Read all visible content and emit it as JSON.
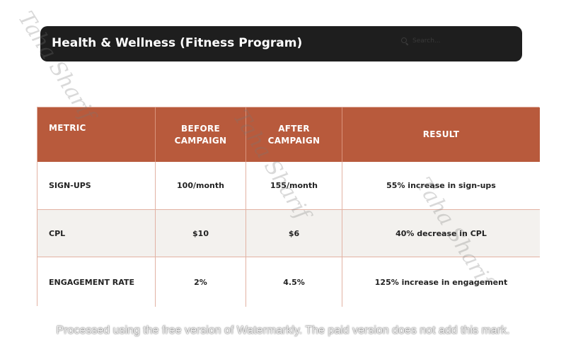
{
  "header": {
    "title": "Health & Wellness (Fitness Program)",
    "search_placeholder": "Search..."
  },
  "table": {
    "columns": [
      "METRIC",
      "BEFORE CAMPAIGN",
      "AFTER CAMPAIGN",
      "RESULT"
    ],
    "rows": [
      {
        "metric": "SIGN-UPS",
        "before": "100/month",
        "after": "155/month",
        "result": "55% increase in sign-ups"
      },
      {
        "metric": "CPL",
        "before": "$10",
        "after": "$6",
        "result": "40% decrease in CPL"
      },
      {
        "metric": "ENGAGEMENT RATE",
        "before": "2%",
        "after": "4.5%",
        "result": "125% increase in engagement"
      }
    ]
  },
  "watermarks": {
    "signature": "Taha Sharif",
    "footer": "Processed using the free version of Watermarkly. The paid version does not add this mark."
  }
}
